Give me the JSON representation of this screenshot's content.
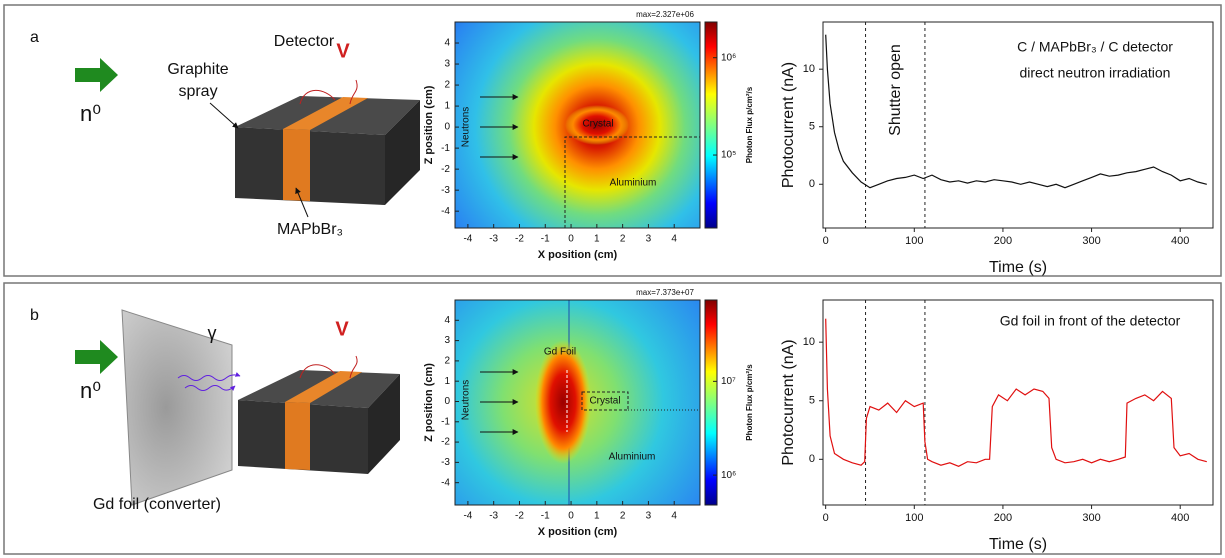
{
  "figure": {
    "panels": [
      {
        "label": "a",
        "detector_title": "Detector",
        "graphite_label": [
          "Graphite",
          "spray"
        ],
        "voltage": "V",
        "neutron": "n⁰",
        "material": "MAPbBr₃"
      },
      {
        "label": "b",
        "gamma": "γ",
        "voltage": "V",
        "neutron": "n⁰",
        "converter": "Gd foil (converter)"
      }
    ]
  },
  "chart_data": [
    {
      "type": "heatmap",
      "max_label": "max=2.327e+06",
      "xlabel": "X position (cm)",
      "ylabel": "Z position (cm)",
      "xlim": [
        -4.5,
        5
      ],
      "ylim": [
        -4.8,
        5
      ],
      "xticks": [
        -4,
        -3,
        -2,
        -1,
        0,
        1,
        2,
        3,
        4
      ],
      "yticks": [
        -4,
        -3,
        -2,
        -1,
        0,
        1,
        2,
        3,
        4
      ],
      "colorbar_label": "Photon Flux p/cm²/s",
      "log_color": true,
      "clim": [
        17800,
        2327000
      ],
      "cticks": [
        {
          "value": 100000,
          "label": "10⁵"
        },
        {
          "value": 1000000,
          "label": "10⁶"
        }
      ],
      "region_labels": [
        "Neutrons",
        "Crystal",
        "Aluminium"
      ]
    },
    {
      "type": "line",
      "xlabel": "Time (s)",
      "ylabel": "Photocurrent (nA)",
      "color": "#111111",
      "xlim": [
        -3,
        437
      ],
      "ylim": [
        -3.8,
        14.1
      ],
      "xticks": [
        0,
        100,
        200,
        300,
        400
      ],
      "yticks": [
        0,
        5,
        10
      ],
      "vlines": [
        45,
        112
      ],
      "shutter_label": "Shutter open",
      "annotations": [
        "C / MAPbBr₃ / C detector",
        "direct neutron irradiation"
      ],
      "x": [
        0,
        2,
        5,
        10,
        15,
        20,
        30,
        40,
        50,
        60,
        70,
        80,
        90,
        100,
        110,
        120,
        130,
        140,
        150,
        160,
        170,
        180,
        190,
        200,
        210,
        220,
        230,
        240,
        250,
        260,
        270,
        280,
        290,
        300,
        310,
        320,
        330,
        340,
        350,
        360,
        370,
        380,
        390,
        400,
        410,
        420,
        430
      ],
      "values": [
        13,
        10,
        7,
        4.5,
        3,
        2,
        1,
        0.2,
        -0.3,
        0,
        0.3,
        0.5,
        0.6,
        0.8,
        0.5,
        0.8,
        0.4,
        0.2,
        0.3,
        0.1,
        0.3,
        0.2,
        0.4,
        0.3,
        0.2,
        0,
        0.2,
        0,
        -0.2,
        0,
        -0.3,
        0,
        0.3,
        0.6,
        0.9,
        0.7,
        0.8,
        1,
        1.1,
        1.3,
        1.5,
        1.1,
        0.8,
        0.3,
        0.5,
        0.2,
        0
      ]
    },
    {
      "type": "heatmap",
      "max_label": "max=7.373e+07",
      "xlabel": "X position (cm)",
      "ylabel": "Z position (cm)",
      "xlim": [
        -4.5,
        5
      ],
      "ylim": [
        -5.1,
        5
      ],
      "xticks": [
        -4,
        -3,
        -2,
        -1,
        0,
        1,
        2,
        3,
        4
      ],
      "yticks": [
        -4,
        -3,
        -2,
        -1,
        0,
        1,
        2,
        3,
        4
      ],
      "colorbar_label": "Photon Flux p/cm²/s",
      "log_color": true,
      "clim": [
        480000,
        73730000
      ],
      "cticks": [
        {
          "value": 1000000,
          "label": "10⁶"
        },
        {
          "value": 10000000,
          "label": "10⁷"
        }
      ],
      "region_labels": [
        "Gd Foil",
        "Neutrons",
        "Crystal",
        "Aluminium"
      ]
    },
    {
      "type": "line",
      "xlabel": "Time (s)",
      "ylabel": "Photocurrent (nA)",
      "color": "#e01010",
      "xlim": [
        -3,
        437
      ],
      "ylim": [
        -3.9,
        13.6
      ],
      "xticks": [
        0,
        100,
        200,
        300,
        400
      ],
      "yticks": [
        0,
        5,
        10
      ],
      "vlines": [
        45,
        112
      ],
      "annotations": [
        "Gd foil in front of the detector"
      ],
      "x": [
        0,
        2,
        5,
        10,
        20,
        30,
        40,
        44,
        46,
        50,
        60,
        70,
        80,
        90,
        100,
        110,
        112,
        115,
        120,
        130,
        140,
        150,
        160,
        170,
        180,
        185,
        188,
        195,
        205,
        215,
        225,
        235,
        245,
        252,
        255,
        260,
        270,
        280,
        290,
        300,
        310,
        320,
        330,
        338,
        340,
        350,
        360,
        370,
        380,
        390,
        393,
        400,
        410,
        420,
        430
      ],
      "values": [
        12,
        6,
        2,
        0.5,
        0,
        -0.3,
        -0.5,
        -0.2,
        3.5,
        4.5,
        4.2,
        4.8,
        4,
        5,
        4.5,
        4.8,
        1.5,
        0,
        -0.2,
        -0.5,
        -0.3,
        -0.6,
        -0.2,
        -0.3,
        0,
        0,
        4.5,
        5.5,
        5,
        6,
        5.5,
        6,
        5.8,
        5.2,
        1,
        0,
        -0.3,
        -0.2,
        0,
        -0.3,
        0,
        -0.2,
        0,
        0.2,
        4.8,
        5.2,
        5.5,
        5,
        5.8,
        5.2,
        1,
        0.3,
        0.5,
        0,
        -0.2
      ]
    }
  ]
}
